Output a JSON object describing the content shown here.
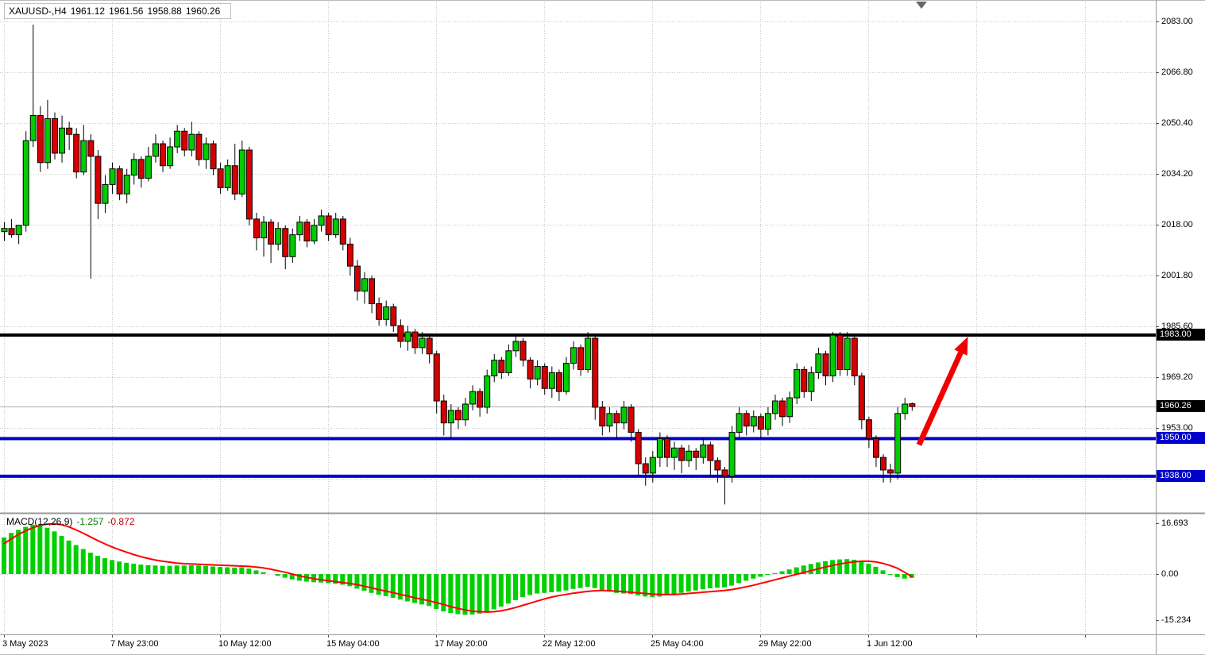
{
  "header": {
    "symbol_period": "XAUUSD-,H4",
    "open": "1961.12",
    "high": "1961.56",
    "low": "1958.88",
    "close": "1960.26"
  },
  "price_axis": {
    "top": 2083.0,
    "step": 16.2,
    "labels": [
      "2083.00",
      "2066.80",
      "2050.40",
      "2034.20",
      "2018.00",
      "2001.80",
      "1985.60",
      "1969.20",
      "1953.00"
    ]
  },
  "time_axis": {
    "bars_per_label": 15,
    "labels": [
      "3 May 2023",
      "7 May 23:00",
      "10 May 12:00",
      "15 May 04:00",
      "17 May 20:00",
      "22 May 12:00",
      "25 May 04:00",
      "29 May 22:00",
      "1 Jun 12:00"
    ]
  },
  "current_price": {
    "price": 1960.26,
    "text": "1960.26"
  },
  "level_lines": [
    {
      "price": 1983.0,
      "color": "#000000",
      "width": 4
    },
    {
      "price": 1950.0,
      "color": "#0000cd",
      "width": 4
    },
    {
      "price": 1938.0,
      "color": "#0000cd",
      "width": 4
    }
  ],
  "price_tags": [
    {
      "label": "1983.00",
      "price": 1983.0,
      "bg": "#000000"
    },
    {
      "label": "1960.26",
      "price": 1960.26,
      "bg": "#000000"
    },
    {
      "label": "1950.00",
      "price": 1950.0,
      "bg": "#0000cd"
    },
    {
      "label": "1938.00",
      "price": 1938.0,
      "bg": "#0000cd"
    }
  ],
  "macd": {
    "name": "MACD(12,26,9)",
    "value": "-1.257",
    "signal": "-0.872",
    "axis_labels": [
      "16.693",
      "0.00",
      "-15.234"
    ],
    "axis_values": [
      16.693,
      0,
      -15.234
    ]
  },
  "colors": {
    "grid": "#c8c8c8",
    "bid_line": "#b0b0b0",
    "separator": "#9a9a9a",
    "tick": "#555555",
    "wick": "#000000"
  },
  "annotations": {
    "arrow": {
      "from": {
        "bar": 127,
        "price": 1948
      },
      "to": {
        "bar": 133.8,
        "price": 1982.5
      },
      "color": "#f00000"
    }
  },
  "chart_data": {
    "type": "candlestick",
    "symbol": "XAUUSD-",
    "timeframe": "H4",
    "up_color": "#00cc00",
    "down_color": "#d60000",
    "signal_color": "#ff0000",
    "hist_color": "#00d000",
    "candles": [
      [
        2016,
        2019,
        2013,
        2017
      ],
      [
        2017,
        2020,
        2014,
        2015
      ],
      [
        2015,
        2018,
        2012,
        2018
      ],
      [
        2018,
        2048,
        2016,
        2045
      ],
      [
        2045,
        2082,
        2043,
        2053
      ],
      [
        2053,
        2056,
        2035,
        2038
      ],
      [
        2038,
        2058,
        2036,
        2052
      ],
      [
        2052,
        2054,
        2039,
        2041
      ],
      [
        2041,
        2053,
        2038,
        2049
      ],
      [
        2049,
        2051,
        2042,
        2047
      ],
      [
        2047,
        2049,
        2033,
        2035
      ],
      [
        2035,
        2050,
        2034,
        2045
      ],
      [
        2045,
        2047,
        2001,
        2040
      ],
      [
        2040,
        2042,
        2020,
        2025
      ],
      [
        2025,
        2034,
        2022,
        2031
      ],
      [
        2031,
        2038,
        2028,
        2036
      ],
      [
        2036,
        2037,
        2026,
        2028
      ],
      [
        2028,
        2036,
        2025,
        2034
      ],
      [
        2034,
        2041,
        2031,
        2039
      ],
      [
        2039,
        2040,
        2030,
        2033
      ],
      [
        2033,
        2043,
        2032,
        2040
      ],
      [
        2040,
        2047,
        2038,
        2044
      ],
      [
        2044,
        2045,
        2035,
        2037
      ],
      [
        2037,
        2046,
        2036,
        2043
      ],
      [
        2043,
        2050,
        2041,
        2048
      ],
      [
        2048,
        2049,
        2040,
        2042
      ],
      [
        2042,
        2051,
        2040,
        2047
      ],
      [
        2047,
        2048,
        2037,
        2039
      ],
      [
        2039,
        2046,
        2036,
        2044
      ],
      [
        2044,
        2045,
        2034,
        2036
      ],
      [
        2036,
        2038,
        2028,
        2030
      ],
      [
        2030,
        2039,
        2029,
        2037
      ],
      [
        2037,
        2044,
        2026,
        2028
      ],
      [
        2028,
        2045,
        2027,
        2042
      ],
      [
        2042,
        2043,
        2018,
        2020
      ],
      [
        2020,
        2022,
        2010,
        2014
      ],
      [
        2014,
        2021,
        2008,
        2019
      ],
      [
        2019,
        2020,
        2006,
        2012
      ],
      [
        2012,
        2019,
        2010,
        2017
      ],
      [
        2017,
        2018,
        2004,
        2008
      ],
      [
        2008,
        2017,
        2006,
        2015
      ],
      [
        2015,
        2021,
        2013,
        2019
      ],
      [
        2019,
        2020,
        2011,
        2013
      ],
      [
        2013,
        2020,
        2012,
        2018
      ],
      [
        2018,
        2023,
        2016,
        2021
      ],
      [
        2021,
        2022,
        2013,
        2015
      ],
      [
        2015,
        2022,
        2014,
        2020
      ],
      [
        2020,
        2021,
        2010,
        2012
      ],
      [
        2012,
        2014,
        2002,
        2005
      ],
      [
        2005,
        2007,
        1994,
        1997
      ],
      [
        1997,
        2003,
        1993,
        2001
      ],
      [
        2001,
        2002,
        1990,
        1993
      ],
      [
        1993,
        1995,
        1986,
        1988
      ],
      [
        1988,
        1994,
        1986,
        1992
      ],
      [
        1992,
        1993,
        1984,
        1986
      ],
      [
        1986,
        1988,
        1979,
        1981
      ],
      [
        1981,
        1986,
        1978,
        1984
      ],
      [
        1984,
        1985,
        1977,
        1979
      ],
      [
        1979,
        1984,
        1977,
        1982
      ],
      [
        1982,
        1983,
        1974,
        1977
      ],
      [
        1977,
        1978,
        1958,
        1962
      ],
      [
        1962,
        1964,
        1951,
        1955
      ],
      [
        1955,
        1961,
        1950,
        1959
      ],
      [
        1959,
        1960,
        1953,
        1956
      ],
      [
        1956,
        1963,
        1954,
        1961
      ],
      [
        1961,
        1967,
        1959,
        1965
      ],
      [
        1965,
        1966,
        1957,
        1960
      ],
      [
        1960,
        1972,
        1958,
        1970
      ],
      [
        1970,
        1977,
        1968,
        1975
      ],
      [
        1975,
        1976,
        1969,
        1971
      ],
      [
        1971,
        1980,
        1970,
        1978
      ],
      [
        1978,
        1983,
        1976,
        1981
      ],
      [
        1981,
        1982,
        1973,
        1975
      ],
      [
        1975,
        1976,
        1966,
        1969
      ],
      [
        1969,
        1975,
        1967,
        1973
      ],
      [
        1973,
        1974,
        1964,
        1966
      ],
      [
        1966,
        1973,
        1963,
        1971
      ],
      [
        1971,
        1972,
        1962,
        1965
      ],
      [
        1965,
        1976,
        1964,
        1974
      ],
      [
        1974,
        1981,
        1972,
        1979
      ],
      [
        1979,
        1980,
        1970,
        1972
      ],
      [
        1972,
        1984,
        1971,
        1982
      ],
      [
        1982,
        1983,
        1956,
        1960
      ],
      [
        1960,
        1962,
        1951,
        1954
      ],
      [
        1954,
        1960,
        1952,
        1958
      ],
      [
        1958,
        1959,
        1950,
        1955
      ],
      [
        1955,
        1962,
        1953,
        1960
      ],
      [
        1960,
        1961,
        1949,
        1952
      ],
      [
        1952,
        1953,
        1938,
        1942
      ],
      [
        1942,
        1944,
        1935,
        1939
      ],
      [
        1939,
        1946,
        1936,
        1944
      ],
      [
        1944,
        1952,
        1941,
        1950
      ],
      [
        1950,
        1951,
        1941,
        1944
      ],
      [
        1944,
        1949,
        1940,
        1947
      ],
      [
        1947,
        1948,
        1939,
        1943
      ],
      [
        1943,
        1948,
        1941,
        1946
      ],
      [
        1946,
        1947,
        1940,
        1944
      ],
      [
        1944,
        1950,
        1942,
        1948
      ],
      [
        1948,
        1949,
        1938,
        1943
      ],
      [
        1943,
        1944,
        1936,
        1940
      ],
      [
        1940,
        1941,
        1929,
        1938
      ],
      [
        1938,
        1954,
        1936,
        1952
      ],
      [
        1952,
        1960,
        1950,
        1958
      ],
      [
        1958,
        1959,
        1951,
        1954
      ],
      [
        1954,
        1959,
        1952,
        1957
      ],
      [
        1957,
        1958,
        1950,
        1953
      ],
      [
        1953,
        1960,
        1951,
        1958
      ],
      [
        1958,
        1964,
        1956,
        1962
      ],
      [
        1962,
        1963,
        1954,
        1957
      ],
      [
        1957,
        1965,
        1955,
        1963
      ],
      [
        1963,
        1974,
        1961,
        1972
      ],
      [
        1972,
        1973,
        1963,
        1965
      ],
      [
        1965,
        1973,
        1962,
        1971
      ],
      [
        1971,
        1979,
        1969,
        1977
      ],
      [
        1977,
        1978,
        1967,
        1970
      ],
      [
        1970,
        1984,
        1968,
        1983
      ],
      [
        1983,
        1984,
        1970,
        1972
      ],
      [
        1972,
        1984,
        1970,
        1982
      ],
      [
        1982,
        1983,
        1967,
        1970
      ],
      [
        1970,
        1971,
        1953,
        1956
      ],
      [
        1956,
        1957,
        1947,
        1950
      ],
      [
        1950,
        1951,
        1941,
        1944
      ],
      [
        1944,
        1945,
        1936,
        1940
      ],
      [
        1940,
        1942,
        1936,
        1939
      ],
      [
        1939,
        1960,
        1937,
        1958
      ],
      [
        1958,
        1963,
        1956,
        1961
      ],
      [
        1961.12,
        1961.56,
        1958.88,
        1960.26
      ]
    ],
    "macd_histogram": [
      12,
      13.5,
      14.5,
      15.5,
      16.2,
      16.0,
      15.2,
      14.0,
      12.5,
      11.0,
      9.5,
      8.2,
      7.0,
      6.0,
      5.2,
      4.6,
      4.1,
      3.7,
      3.4,
      3.1,
      2.9,
      2.8,
      2.7,
      2.7,
      2.8,
      2.8,
      2.9,
      2.8,
      2.7,
      2.5,
      2.3,
      2.2,
      2.1,
      2.2,
      1.8,
      1.2,
      0.6,
      0.0,
      -0.6,
      -1.2,
      -1.8,
      -2.2,
      -2.5,
      -2.7,
      -2.8,
      -3.0,
      -3.2,
      -3.5,
      -4.0,
      -4.8,
      -5.5,
      -6.2,
      -6.8,
      -7.3,
      -7.8,
      -8.4,
      -9.0,
      -9.5,
      -10.0,
      -10.5,
      -11.5,
      -12.3,
      -12.8,
      -13.2,
      -13.4,
      -13.3,
      -13.0,
      -12.4,
      -11.6,
      -10.7,
      -9.7,
      -8.6,
      -7.6,
      -6.9,
      -6.4,
      -6.2,
      -6.0,
      -5.8,
      -5.4,
      -4.9,
      -4.6,
      -4.2,
      -4.6,
      -5.2,
      -5.8,
      -6.2,
      -6.4,
      -6.6,
      -7.0,
      -7.4,
      -7.6,
      -7.4,
      -7.0,
      -6.6,
      -6.2,
      -5.8,
      -5.4,
      -5.0,
      -4.7,
      -4.5,
      -4.4,
      -3.8,
      -3.0,
      -2.2,
      -1.5,
      -0.9,
      -0.3,
      0.3,
      0.9,
      1.5,
      2.2,
      2.8,
      3.3,
      3.8,
      4.2,
      4.6,
      4.8,
      4.9,
      4.7,
      4.2,
      3.4,
      2.4,
      1.2,
      -0.2,
      -1.0,
      -1.5,
      -1.257
    ],
    "macd_signal": [
      10.0,
      11.5,
      13.0,
      14.2,
      15.2,
      16.0,
      16.4,
      16.5,
      16.2,
      15.5,
      14.5,
      13.4,
      12.2,
      11.0,
      9.9,
      8.9,
      8.0,
      7.2,
      6.4,
      5.7,
      5.1,
      4.6,
      4.2,
      3.9,
      3.6,
      3.4,
      3.3,
      3.2,
      3.1,
      3.0,
      2.9,
      2.8,
      2.7,
      2.6,
      2.5,
      2.3,
      2.0,
      1.6,
      1.1,
      0.6,
      0.0,
      -0.6,
      -1.1,
      -1.5,
      -1.9,
      -2.2,
      -2.5,
      -2.8,
      -3.1,
      -3.5,
      -4.0,
      -4.5,
      -5.1,
      -5.6,
      -6.1,
      -6.7,
      -7.2,
      -7.8,
      -8.3,
      -8.8,
      -9.4,
      -10.0,
      -10.7,
      -11.3,
      -11.8,
      -12.2,
      -12.4,
      -12.5,
      -12.4,
      -12.1,
      -11.6,
      -11.0,
      -10.3,
      -9.6,
      -8.9,
      -8.2,
      -7.6,
      -7.1,
      -6.7,
      -6.3,
      -6.0,
      -5.7,
      -5.5,
      -5.4,
      -5.5,
      -5.6,
      -5.8,
      -6.0,
      -6.2,
      -6.4,
      -6.6,
      -6.7,
      -6.7,
      -6.7,
      -6.6,
      -6.4,
      -6.2,
      -6.0,
      -5.8,
      -5.6,
      -5.4,
      -5.1,
      -4.7,
      -4.2,
      -3.7,
      -3.1,
      -2.5,
      -1.9,
      -1.3,
      -0.7,
      -0.1,
      0.5,
      1.1,
      1.7,
      2.3,
      2.8,
      3.3,
      3.7,
      4.0,
      4.2,
      4.2,
      4.0,
      3.5,
      2.8,
      1.9,
      0.6,
      -0.872
    ]
  }
}
